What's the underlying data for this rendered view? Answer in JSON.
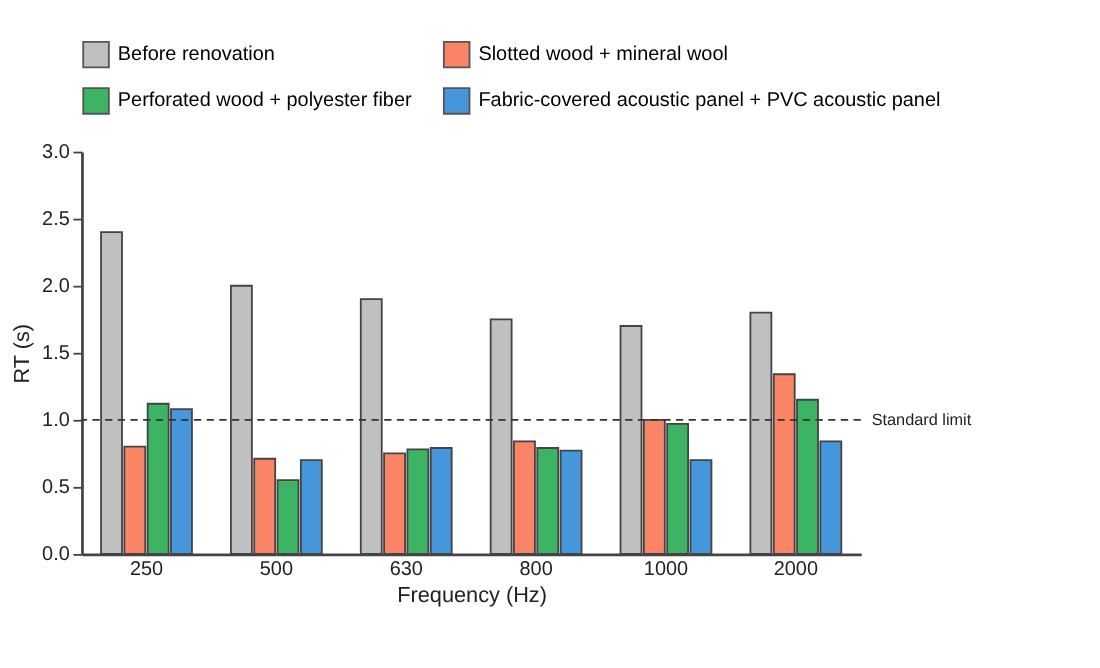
{
  "chart_data": {
    "type": "bar",
    "xlabel": "Frequency (Hz)",
    "ylabel": "RT (s)",
    "categories": [
      "250",
      "500",
      "630",
      "800",
      "1000",
      "2000"
    ],
    "series": [
      {
        "name": "Before renovation",
        "color": "#c0c0c0",
        "values": [
          2.4,
          2.0,
          1.9,
          1.75,
          1.7,
          1.8
        ]
      },
      {
        "name": "Slotted wood + mineral wool",
        "color": "#fa8466",
        "values": [
          0.8,
          0.71,
          0.75,
          0.84,
          1.0,
          1.34
        ]
      },
      {
        "name": "Perforated wood + polyester fiber",
        "color": "#3cb464",
        "values": [
          1.12,
          0.55,
          0.78,
          0.79,
          0.97,
          1.15
        ]
      },
      {
        "name": "Fabric-covered acoustic panel + PVC acoustic panel",
        "color": "#4696dc",
        "values": [
          1.08,
          0.7,
          0.79,
          0.77,
          0.7,
          0.84
        ]
      }
    ],
    "ylim": [
      0,
      3.0
    ],
    "yticks": [
      {
        "value": 0,
        "label": "0.0"
      },
      {
        "value": 0.5,
        "label": "0.5"
      },
      {
        "value": 1,
        "label": "1.0"
      },
      {
        "value": 1.5,
        "label": "1.5"
      },
      {
        "value": 2,
        "label": "2.0"
      },
      {
        "value": 2.5,
        "label": "2.5"
      },
      {
        "value": 3,
        "label": "3.0"
      }
    ],
    "ref_lines": [
      {
        "axis": "y",
        "value": 1.0,
        "label": "Standard limit",
        "line_style": "dashed",
        "color": "#333333"
      }
    ],
    "grid": false,
    "legend": "top"
  }
}
